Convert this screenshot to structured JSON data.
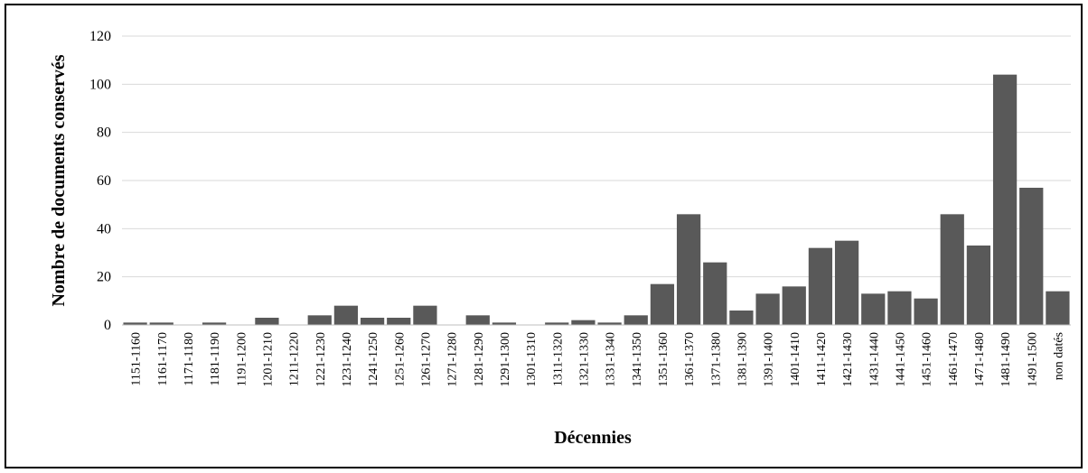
{
  "chart_data": {
    "type": "bar",
    "xlabel": "Décennies",
    "ylabel": "Nombre de documents conservés",
    "ylim": [
      0,
      120
    ],
    "yticks": [
      0,
      20,
      40,
      60,
      80,
      100,
      120
    ],
    "grid": true,
    "legend": "none",
    "bar_color": "#595959",
    "grid_color": "#d9d9d9",
    "categories": [
      "1151-1160",
      "1161-1170",
      "1171-1180",
      "1181-1190",
      "1191-1200",
      "1201-1210",
      "1211-1220",
      "1221-1230",
      "1231-1240",
      "1241-1250",
      "1251-1260",
      "1261-1270",
      "1271-1280",
      "1281-1290",
      "1291-1300",
      "1301-1310",
      "1311-1320",
      "1321-1330",
      "1331-1340",
      "1341-1350",
      "1351-1360",
      "1361-1370",
      "1371-1380",
      "1381-1390",
      "1391-1400",
      "1401-1410",
      "1411-1420",
      "1421-1430",
      "1431-1440",
      "1441-1450",
      "1451-1460",
      "1461-1470",
      "1471-1480",
      "1481-1490",
      "1491-1500",
      "non datés"
    ],
    "values": [
      1,
      1,
      0,
      1,
      0,
      3,
      0,
      4,
      8,
      3,
      3,
      8,
      0,
      4,
      1,
      0,
      1,
      2,
      1,
      4,
      17,
      46,
      26,
      6,
      13,
      16,
      32,
      35,
      13,
      14,
      11,
      46,
      33,
      104,
      57,
      14
    ]
  }
}
